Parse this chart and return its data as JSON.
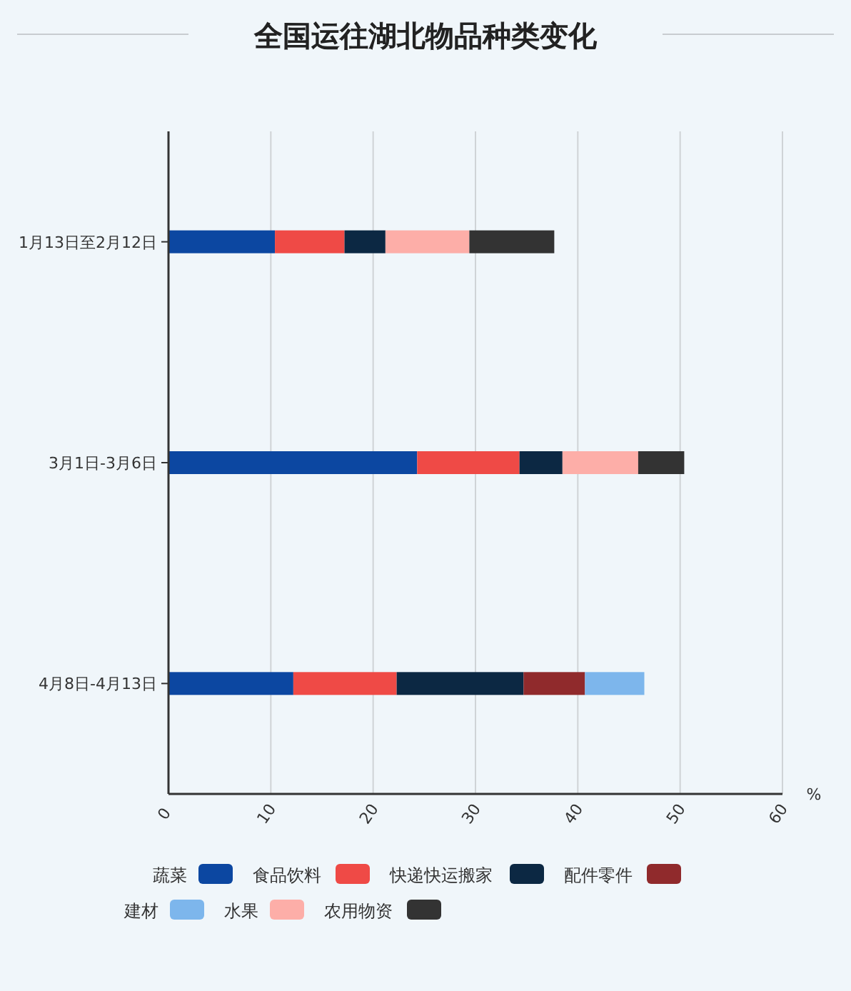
{
  "chart_data": {
    "type": "bar",
    "orientation": "horizontal",
    "stacked": true,
    "title": "全国运往湖北物品种类变化",
    "xlabel": "%",
    "categories": [
      "1月13日至2月12日",
      "3月1日-3月6日",
      "4月8日-4月13日"
    ],
    "series": [
      {
        "name": "蔬菜",
        "color": "#0c47a1",
        "values": [
          10.4,
          24.3,
          12.2
        ]
      },
      {
        "name": "食品饮料",
        "color": "#ef4a46",
        "values": [
          6.8,
          10.0,
          10.1
        ]
      },
      {
        "name": "快递快运搬家",
        "color": "#0c2843",
        "values": [
          4.0,
          4.2,
          12.4
        ]
      },
      {
        "name": "配件零件",
        "color": "#902a2c",
        "values": [
          null,
          null,
          6.0
        ]
      },
      {
        "name": "建材",
        "color": "#7db6ec",
        "values": [
          null,
          null,
          5.8
        ]
      },
      {
        "name": "水果",
        "color": "#fdaea8",
        "values": [
          8.2,
          7.4,
          null
        ]
      },
      {
        "name": "农用物资",
        "color": "#333333",
        "values": [
          8.3,
          4.5,
          null
        ]
      }
    ],
    "xlim": [
      0,
      60
    ],
    "xticks": [
      0,
      10,
      20,
      30,
      40,
      50,
      60
    ],
    "grid": "x",
    "legend": "bottom"
  }
}
